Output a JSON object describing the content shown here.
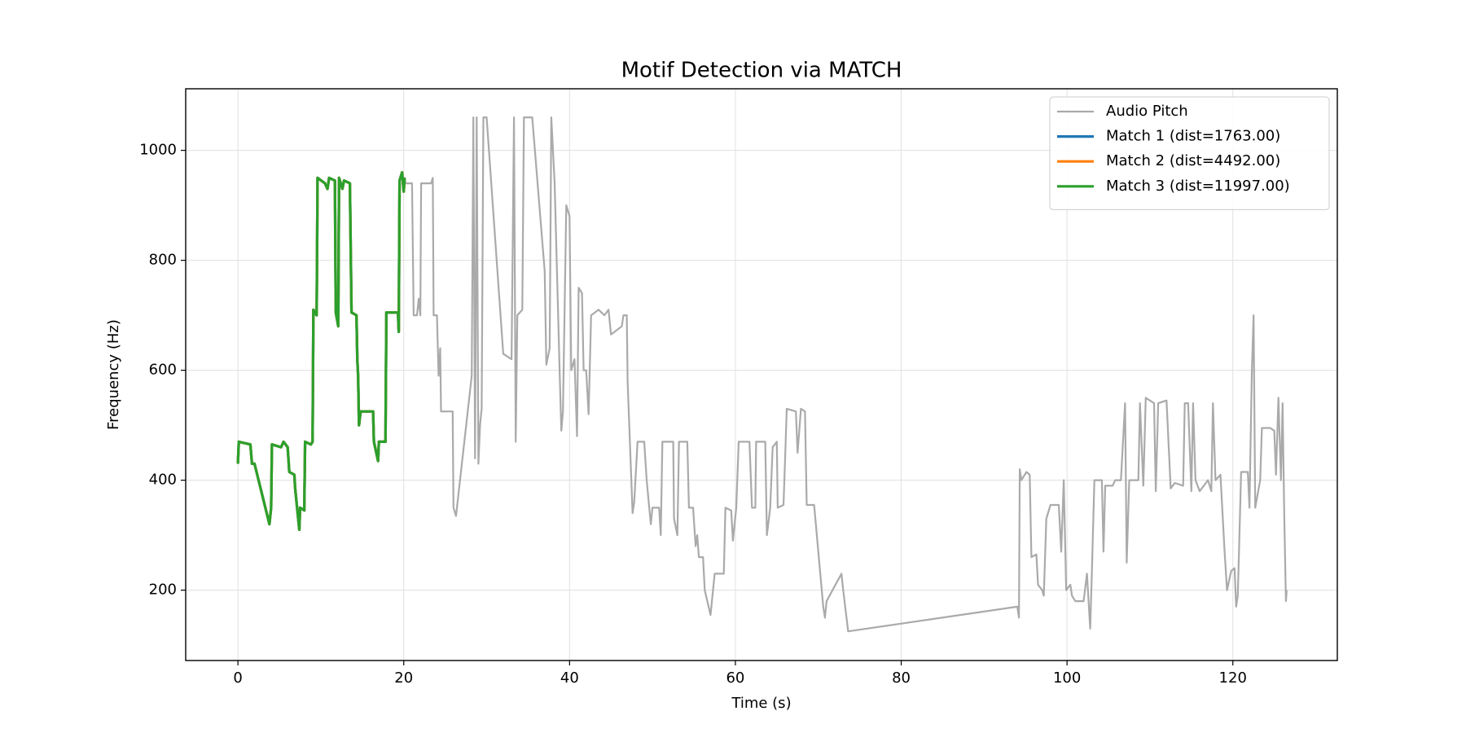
{
  "chart_data": {
    "type": "line",
    "title": "Motif Detection via MATCH",
    "xlabel": "Time (s)",
    "ylabel": "Frequency (Hz)",
    "xlim": [
      -6.3,
      132.6
    ],
    "ylim": [
      72,
      1112
    ],
    "xticks": [
      0,
      20,
      40,
      60,
      80,
      100,
      120
    ],
    "yticks": [
      200,
      400,
      600,
      800,
      1000
    ],
    "grid": true,
    "legend": "upper right",
    "series": [
      {
        "name": "Audio Pitch",
        "color": "#aaaaaa",
        "linewidth": 2.2,
        "x": [
          0,
          0.1,
          1.5,
          1.7,
          2.0,
          3.8,
          4.0,
          4.1,
          5.2,
          5.5,
          6.0,
          6.2,
          6.8,
          6.9,
          7.4,
          7.5,
          8.0,
          8.1,
          8.8,
          9.0,
          9.1,
          9.5,
          9.6,
          10.5,
          10.8,
          11.0,
          11.7,
          11.8,
          12.1,
          12.2,
          12.6,
          12.8,
          13.5,
          13.7,
          14.3,
          14.4,
          14.5,
          14.6,
          14.8,
          16.3,
          16.4,
          16.9,
          17.0,
          17.8,
          17.9,
          19.3,
          19.4,
          19.5,
          19.8,
          20.0,
          20.1,
          20.2,
          21.0,
          21.2,
          21.6,
          21.8,
          22.0,
          22.1,
          23.3,
          23.5,
          23.6,
          24.0,
          24.2,
          24.4,
          24.5,
          25.9,
          26.0,
          26.3,
          28.2,
          28.4,
          28.6,
          28.8,
          29.0,
          29.2,
          29.4,
          29.6,
          30.0,
          32.0,
          33.0,
          33.3,
          33.5,
          33.7,
          34.3,
          34.5,
          35.5,
          37.0,
          37.2,
          37.6,
          37.8,
          38.2,
          38.8,
          39.0,
          39.2,
          39.6,
          40.0,
          40.2,
          40.6,
          40.9,
          41.1,
          41.5,
          41.7,
          42.0,
          42.3,
          42.6,
          43.5,
          44.2,
          44.7,
          45.0,
          46.3,
          46.5,
          46.9,
          47.0,
          47.6,
          47.8,
          48.2,
          49.0,
          49.3,
          49.8,
          50.0,
          50.8,
          51.0,
          51.2,
          52.5,
          52.6,
          53.0,
          53.2,
          54.2,
          54.4,
          54.9,
          55.2,
          55.4,
          55.6,
          56.1,
          56.3,
          57.0,
          57.5,
          58.6,
          58.8,
          59.5,
          59.7,
          60.1,
          60.4,
          61.7,
          62.0,
          62.4,
          62.5,
          63.6,
          63.8,
          64.2,
          64.5,
          65.0,
          65.1,
          65.8,
          66.0,
          66.2,
          67.3,
          67.5,
          67.9,
          68.4,
          68.6,
          69.5,
          70.6,
          70.8,
          71.0,
          72.8,
          73.0,
          73.6,
          94.0,
          94.2,
          94.3,
          94.5,
          95.1,
          95.5,
          95.7,
          96.3,
          96.5,
          97.0,
          97.2,
          97.5,
          98.0,
          99.0,
          99.3,
          99.6,
          99.9,
          100.4,
          100.6,
          101.0,
          102.0,
          102.4,
          102.8,
          103.0,
          103.3,
          104.2,
          104.4,
          104.6,
          105.5,
          105.8,
          106.5,
          107.0,
          107.2,
          107.5,
          108.0,
          108.6,
          108.8,
          109.2,
          109.5,
          110.5,
          110.7,
          111.0,
          112.0,
          112.5,
          113.0,
          114.0,
          114.2,
          114.6,
          115.0,
          115.2,
          115.5,
          116.0,
          117.0,
          117.4,
          117.6,
          117.9,
          118.5,
          119.0,
          119.3,
          119.8,
          120.2,
          120.4,
          120.6,
          121.0,
          121.8,
          122.0,
          122.3,
          122.5,
          122.7,
          123.3,
          123.5,
          124.5,
          125.0,
          125.2,
          125.5,
          125.8,
          126.0,
          126.2,
          126.4,
          126.5
        ],
        "values": [
          430,
          470,
          465,
          430,
          430,
          320,
          350,
          465,
          460,
          470,
          460,
          415,
          410,
          385,
          310,
          350,
          345,
          470,
          465,
          470,
          710,
          700,
          950,
          940,
          930,
          950,
          945,
          705,
          680,
          950,
          930,
          945,
          940,
          705,
          700,
          620,
          590,
          500,
          525,
          525,
          470,
          435,
          470,
          470,
          705,
          705,
          670,
          945,
          960,
          925,
          950,
          940,
          940,
          700,
          700,
          730,
          700,
          940,
          940,
          950,
          700,
          700,
          590,
          640,
          525,
          525,
          350,
          335,
          590,
          1060,
          440,
          1060,
          430,
          500,
          530,
          1060,
          1060,
          630,
          620,
          1060,
          470,
          700,
          710,
          1060,
          1060,
          780,
          610,
          640,
          1060,
          940,
          600,
          490,
          525,
          900,
          880,
          600,
          620,
          480,
          750,
          740,
          600,
          600,
          520,
          700,
          710,
          700,
          710,
          665,
          680,
          700,
          700,
          580,
          340,
          360,
          470,
          470,
          400,
          320,
          350,
          350,
          300,
          470,
          470,
          330,
          300,
          470,
          470,
          350,
          350,
          280,
          300,
          260,
          260,
          200,
          155,
          230,
          230,
          350,
          345,
          290,
          350,
          470,
          470,
          350,
          350,
          470,
          470,
          300,
          350,
          460,
          470,
          350,
          355,
          440,
          530,
          525,
          450,
          530,
          525,
          355,
          355,
          170,
          150,
          180,
          230,
          200,
          125,
          170,
          150,
          420,
          400,
          415,
          410,
          260,
          265,
          210,
          200,
          190,
          330,
          355,
          355,
          270,
          400,
          200,
          210,
          190,
          180,
          180,
          230,
          130,
          235,
          400,
          400,
          270,
          390,
          390,
          400,
          400,
          540,
          250,
          400,
          400,
          400,
          540,
          390,
          550,
          540,
          380,
          540,
          545,
          385,
          395,
          390,
          540,
          540,
          380,
          540,
          400,
          380,
          400,
          380,
          540,
          400,
          410,
          270,
          200,
          235,
          240,
          170,
          190,
          415,
          415,
          350,
          600,
          700,
          350,
          400,
          495,
          495,
          490,
          410,
          550,
          400,
          540,
          340,
          180,
          200
        ]
      },
      {
        "name": "Match 1 (dist=1763.00)",
        "color": "#1f77b4",
        "linewidth": 3.2,
        "x": [
          0,
          0.1,
          1.5,
          1.7,
          2.0,
          3.8,
          4.0,
          4.1,
          5.2,
          5.5,
          6.0,
          6.2,
          6.8,
          6.9,
          7.4,
          7.5,
          8.0,
          8.1,
          8.8,
          9.0,
          9.1,
          9.5,
          9.6,
          10.5,
          10.8,
          11.0,
          11.7,
          11.8,
          12.1,
          12.2,
          12.6,
          12.8,
          13.5,
          13.7,
          14.3,
          14.4,
          14.5,
          14.6,
          14.8,
          16.3,
          16.4,
          16.9,
          17.0,
          17.8,
          17.9,
          19.3,
          19.4,
          19.5,
          19.8,
          20.0,
          20.1
        ],
        "values": [
          430,
          470,
          465,
          430,
          430,
          320,
          350,
          465,
          460,
          470,
          460,
          415,
          410,
          385,
          310,
          350,
          345,
          470,
          465,
          470,
          710,
          700,
          950,
          940,
          930,
          950,
          945,
          705,
          680,
          950,
          930,
          945,
          940,
          705,
          700,
          620,
          590,
          500,
          525,
          525,
          470,
          435,
          470,
          470,
          705,
          705,
          670,
          945,
          960,
          925,
          950
        ]
      },
      {
        "name": "Match 2 (dist=4492.00)",
        "color": "#ff7f0e",
        "linewidth": 3.2,
        "x": [
          0,
          0.1,
          1.5,
          1.7,
          2.0,
          3.8,
          4.0,
          4.1,
          5.2,
          5.5,
          6.0,
          6.2,
          6.8,
          6.9,
          7.4,
          7.5,
          8.0,
          8.1,
          8.8,
          9.0,
          9.1,
          9.5,
          9.6,
          10.5,
          10.8,
          11.0,
          11.7,
          11.8,
          12.1,
          12.2,
          12.6,
          12.8,
          13.5,
          13.7,
          14.3,
          14.4,
          14.5,
          14.6,
          14.8,
          16.3,
          16.4,
          16.9,
          17.0,
          17.8,
          17.9,
          19.3,
          19.4,
          19.5,
          19.8,
          20.0,
          20.1
        ],
        "values": [
          430,
          470,
          465,
          430,
          430,
          320,
          350,
          465,
          460,
          470,
          460,
          415,
          410,
          385,
          310,
          350,
          345,
          470,
          465,
          470,
          710,
          700,
          950,
          940,
          930,
          950,
          945,
          705,
          680,
          950,
          930,
          945,
          940,
          705,
          700,
          620,
          590,
          500,
          525,
          525,
          470,
          435,
          470,
          470,
          705,
          705,
          670,
          945,
          960,
          925,
          950
        ]
      },
      {
        "name": "Match 3 (dist=11997.00)",
        "color": "#2ca02c",
        "linewidth": 3.2,
        "x": [
          0,
          0.1,
          1.5,
          1.7,
          2.0,
          3.8,
          4.0,
          4.1,
          5.2,
          5.5,
          6.0,
          6.2,
          6.8,
          6.9,
          7.4,
          7.5,
          8.0,
          8.1,
          8.8,
          9.0,
          9.1,
          9.5,
          9.6,
          10.5,
          10.8,
          11.0,
          11.7,
          11.8,
          12.1,
          12.2,
          12.6,
          12.8,
          13.5,
          13.7,
          14.3,
          14.4,
          14.5,
          14.6,
          14.8,
          16.3,
          16.4,
          16.9,
          17.0,
          17.8,
          17.9,
          19.3,
          19.4,
          19.5,
          19.8,
          20.0,
          20.1
        ],
        "values": [
          430,
          470,
          465,
          430,
          430,
          320,
          350,
          465,
          460,
          470,
          460,
          415,
          410,
          385,
          310,
          350,
          345,
          470,
          465,
          470,
          710,
          700,
          950,
          940,
          930,
          950,
          945,
          705,
          680,
          950,
          930,
          945,
          940,
          705,
          700,
          620,
          590,
          500,
          525,
          525,
          470,
          435,
          470,
          470,
          705,
          705,
          670,
          945,
          960,
          925,
          950
        ]
      }
    ]
  }
}
